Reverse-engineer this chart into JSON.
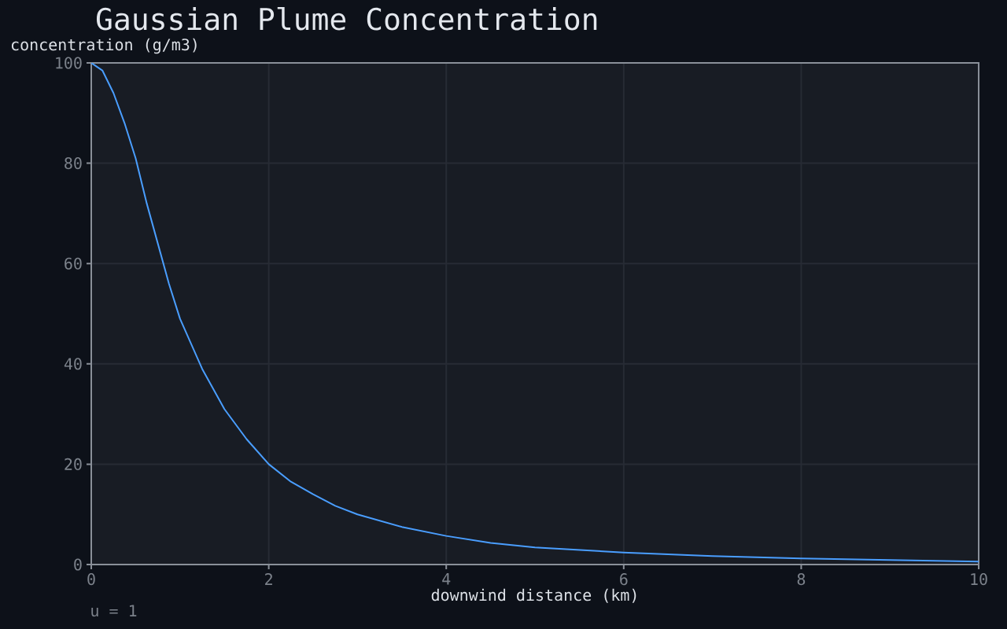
{
  "chart_data": {
    "type": "line",
    "title": "Gaussian Plume Concentration",
    "xlabel": "downwind distance (km)",
    "ylabel": "concentration (g/m3)",
    "annotations": [
      "u = 1"
    ],
    "x": [
      0,
      0.125,
      0.25,
      0.375,
      0.5,
      0.625,
      0.75,
      0.875,
      1,
      1.25,
      1.5,
      1.75,
      2,
      2.25,
      2.5,
      2.75,
      3,
      3.5,
      4,
      4.5,
      5,
      6,
      7,
      8,
      9,
      10
    ],
    "series": [
      {
        "color": "#4a9eff",
        "values": [
          100,
          98.5,
          94,
          88,
          81,
          72,
          64,
          56,
          49,
          39,
          31,
          25,
          20,
          16.5,
          14,
          11.7,
          10,
          7.5,
          5.7,
          4.3,
          3.4,
          2.4,
          1.7,
          1.2,
          0.9,
          0.6
        ]
      }
    ],
    "xlim": [
      0,
      10
    ],
    "ylim": [
      0,
      100
    ],
    "xticks": [
      0,
      2,
      4,
      6,
      8,
      10
    ],
    "yticks": [
      0,
      20,
      40,
      60,
      80,
      100
    ],
    "grid": true,
    "marker": "none",
    "line_style": "solid"
  }
}
